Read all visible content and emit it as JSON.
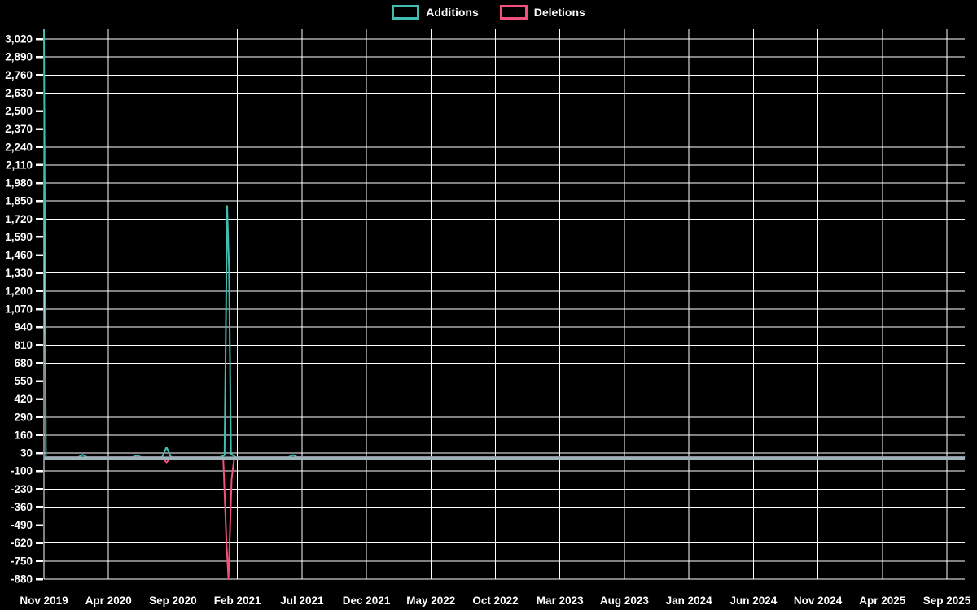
{
  "legend": {
    "items": [
      {
        "label": "Additions",
        "color": "#41bdb3"
      },
      {
        "label": "Deletions",
        "color": "#f3517b"
      }
    ]
  },
  "chart_data": {
    "type": "line",
    "title": "",
    "legend_position": "top-center",
    "grid": true,
    "x_axis": {
      "start": "Nov 2019",
      "end": "Sep 2025",
      "months_span": 70,
      "tick_labels": [
        "Nov 2019",
        "Apr 2020",
        "Sep 2020",
        "Feb 2021",
        "Jul 2021",
        "Dec 2021",
        "May 2022",
        "Oct 2022",
        "Mar 2023",
        "Aug 2023",
        "Jan 2024",
        "Jun 2024",
        "Nov 2024",
        "Apr 2025",
        "Sep 2025"
      ]
    },
    "y_axis": {
      "min": -880,
      "max": 3020,
      "step": 130,
      "tick_labels": [
        "3,020",
        "2,890",
        "2,760",
        "2,630",
        "2,500",
        "2,370",
        "2,240",
        "2,110",
        "1,980",
        "1,850",
        "1,720",
        "1,590",
        "1,460",
        "1,330",
        "1,200",
        "1,070",
        "940",
        "810",
        "680",
        "550",
        "420",
        "290",
        "160",
        "30",
        "-100",
        "-230",
        "-360",
        "-490",
        "-620",
        "-750",
        "-880"
      ]
    },
    "points_x_unit": "months since Nov 2019",
    "series": [
      {
        "name": "Additions",
        "color": "#41bdb3",
        "baseline_value": 0,
        "points": [
          [
            0,
            3090
          ],
          [
            0.15,
            0
          ],
          [
            3,
            18
          ],
          [
            7.2,
            12
          ],
          [
            9.5,
            72
          ],
          [
            14.0,
            15
          ],
          [
            14.2,
            1815
          ],
          [
            14.35,
            1360
          ],
          [
            14.5,
            25
          ],
          [
            19.3,
            16
          ],
          [
            71.4,
            0
          ]
        ]
      },
      {
        "name": "Deletions",
        "color": "#f3517b",
        "baseline_value": 0,
        "points": [
          [
            0,
            -8
          ],
          [
            3,
            -6
          ],
          [
            9.5,
            -38
          ],
          [
            13.9,
            -8
          ],
          [
            14.15,
            -620
          ],
          [
            14.3,
            -880
          ],
          [
            14.55,
            -160
          ],
          [
            14.75,
            -8
          ],
          [
            19.3,
            -14
          ],
          [
            71.4,
            0
          ]
        ]
      }
    ],
    "annotations": {
      "peak_additions": 3090,
      "peak_additions_date": "Nov 2019",
      "secondary_additions_peak": 1815,
      "secondary_additions_peak_date": "Jan 2021",
      "peak_deletions": -880,
      "peak_deletions_date": "Jan 2021"
    },
    "colors": {
      "background": "#000000",
      "grid": "#ffffff",
      "text": "#ffffff",
      "baseline_overlap": "#9db3ba"
    }
  }
}
